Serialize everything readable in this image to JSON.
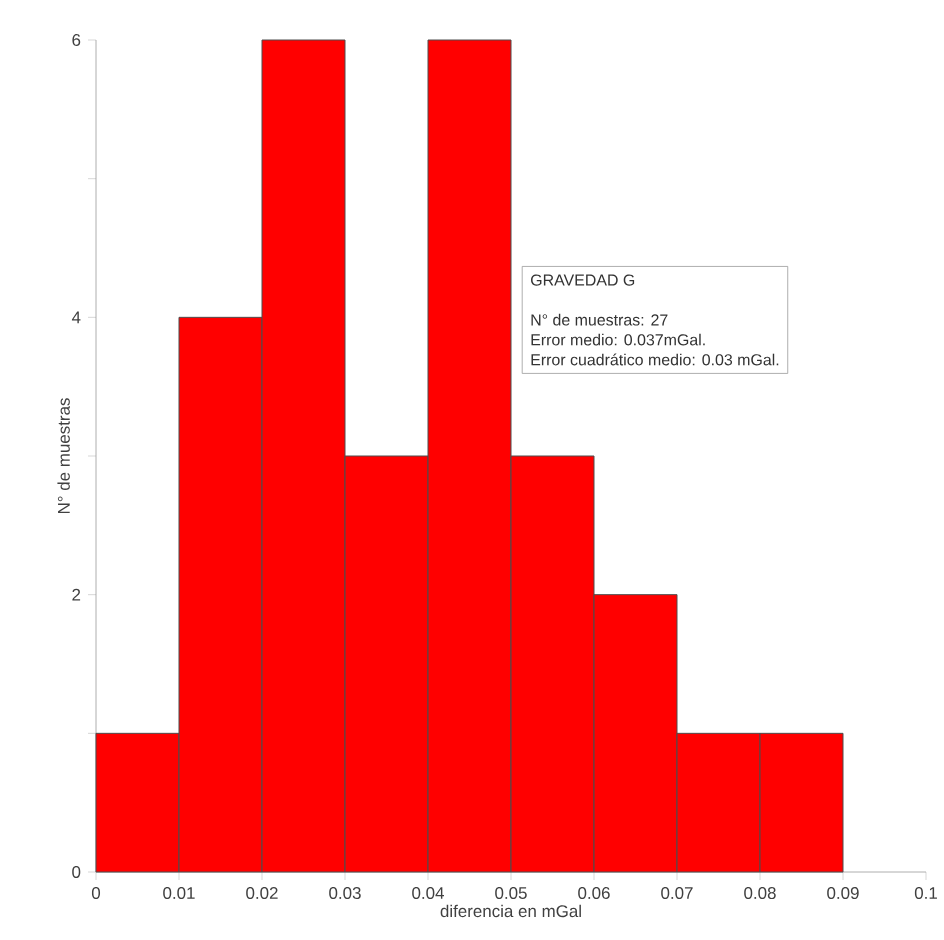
{
  "chart_data": {
    "type": "histogram",
    "xlabel": "diferencia en mGal",
    "ylabel": "N° de muestras",
    "bins": [
      0,
      0.01,
      0.02,
      0.03,
      0.04,
      0.05,
      0.06,
      0.07,
      0.08,
      0.09
    ],
    "values": [
      1,
      4,
      6,
      3,
      6,
      3,
      2,
      1,
      1
    ],
    "color": "#ff0000",
    "xlim": [
      0,
      0.1
    ],
    "ylim": [
      0,
      6
    ],
    "xticks": [
      0,
      0.01,
      0.02,
      0.03,
      0.04,
      0.05,
      0.06,
      0.07,
      0.08,
      0.09,
      0.1
    ],
    "yticks": [
      0,
      {
        "value": 1,
        "label": null
      },
      2,
      {
        "value": 3,
        "label": null
      },
      4,
      {
        "value": 5,
        "label": null
      },
      6
    ],
    "grid": false,
    "annotations": [
      "GRAVEDAD G",
      "N° de muestras: 27",
      "Error medio: 0.037mGal.",
      "Error cuadrático medio: 0.03 mGal."
    ]
  }
}
